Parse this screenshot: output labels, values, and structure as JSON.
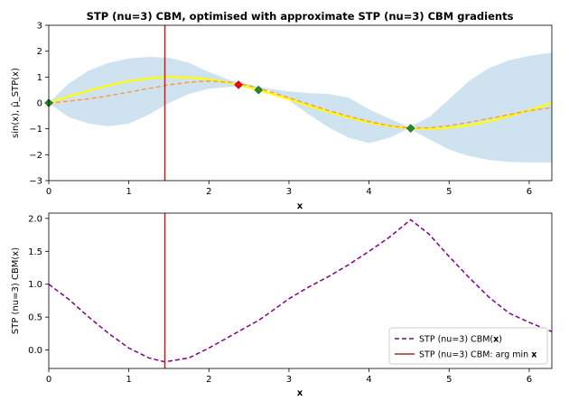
{
  "chart_data": [
    {
      "type": "line",
      "title": "STP (nu=3) CBM, optimised with approximate STP (nu=3) CBM gradients",
      "xlabel": "x",
      "ylabel": "sin(x), μ̂_STP(x)",
      "xlim": [
        0,
        6.283
      ],
      "ylim": [
        -3,
        3
      ],
      "xticks": [
        "0",
        "1",
        "2",
        "3",
        "4",
        "5",
        "6"
      ],
      "yticks": [
        "−3",
        "−2",
        "−1",
        "0",
        "1",
        "2",
        "3"
      ],
      "grid": false,
      "colors": {
        "true_fn": "#ffff00",
        "mean": "#ff9933",
        "band": "#cfe2f0",
        "vline": "#a52a2a",
        "obs": "#228b22",
        "best": "#ff0000"
      },
      "x": [
        0,
        0.25,
        0.5,
        0.75,
        1.0,
        1.25,
        1.5,
        1.75,
        2.0,
        2.25,
        2.5,
        2.75,
        3.0,
        3.25,
        3.5,
        3.75,
        4.0,
        4.25,
        4.5,
        4.75,
        5.0,
        5.25,
        5.5,
        5.75,
        6.0,
        6.283
      ],
      "series": [
        {
          "name": "true_fn",
          "values": [
            0,
            0.25,
            0.48,
            0.68,
            0.84,
            0.95,
            1.0,
            0.98,
            0.91,
            0.78,
            0.6,
            0.38,
            0.14,
            -0.11,
            -0.35,
            -0.57,
            -0.76,
            -0.89,
            -0.98,
            -1.0,
            -0.96,
            -0.86,
            -0.71,
            -0.51,
            -0.28,
            0
          ]
        },
        {
          "name": "mean",
          "values": [
            0,
            0.07,
            0.16,
            0.28,
            0.42,
            0.56,
            0.7,
            0.8,
            0.85,
            0.8,
            0.67,
            0.45,
            0.2,
            -0.05,
            -0.3,
            -0.52,
            -0.72,
            -0.88,
            -0.97,
            -0.96,
            -0.88,
            -0.75,
            -0.6,
            -0.45,
            -0.3,
            -0.18
          ]
        },
        {
          "name": "upper",
          "values": [
            0,
            0.75,
            1.25,
            1.55,
            1.72,
            1.78,
            1.75,
            1.55,
            1.2,
            0.9,
            0.7,
            0.55,
            0.45,
            0.38,
            0.35,
            0.2,
            -0.25,
            -0.6,
            -0.93,
            -0.55,
            0.15,
            0.85,
            1.35,
            1.65,
            1.82,
            1.95
          ]
        },
        {
          "name": "lower",
          "values": [
            0,
            -0.55,
            -0.8,
            -0.9,
            -0.8,
            -0.45,
            0.0,
            0.35,
            0.55,
            0.62,
            0.6,
            0.5,
            0.1,
            -0.45,
            -0.95,
            -1.35,
            -1.55,
            -1.35,
            -0.98,
            -1.4,
            -1.8,
            -2.05,
            -2.2,
            -2.28,
            -2.3,
            -2.3
          ]
        }
      ],
      "observations": [
        {
          "x": 0.0,
          "y": 0.0
        },
        {
          "x": 2.62,
          "y": 0.5
        },
        {
          "x": 4.52,
          "y": -0.98
        }
      ],
      "best_point": {
        "x": 2.37,
        "y": 0.7
      },
      "argmin_x": 1.45
    },
    {
      "type": "line",
      "xlabel": "x",
      "ylabel": "STP (nu=3) CBM(x)",
      "xlim": [
        0,
        6.283
      ],
      "ylim": [
        -0.28,
        2.08
      ],
      "xticks": [
        "0",
        "1",
        "2",
        "3",
        "4",
        "5",
        "6"
      ],
      "yticks": [
        "0.0",
        "0.5",
        "1.0",
        "1.5",
        "2.0"
      ],
      "grid": false,
      "legend_position": "lower-right",
      "colors": {
        "cbm": "#800080",
        "vline": "#a52a2a"
      },
      "x": [
        0,
        0.25,
        0.5,
        0.75,
        1.0,
        1.25,
        1.45,
        1.75,
        2.0,
        2.25,
        2.5,
        2.62,
        2.75,
        3.0,
        3.25,
        3.5,
        3.75,
        4.0,
        4.25,
        4.52,
        4.75,
        5.0,
        5.25,
        5.5,
        5.75,
        6.0,
        6.283
      ],
      "series": [
        {
          "name": "STP (nu=3) CBM(x)",
          "values": [
            1.0,
            0.77,
            0.5,
            0.25,
            0.03,
            -0.12,
            -0.18,
            -0.12,
            0.03,
            0.2,
            0.37,
            0.45,
            0.56,
            0.78,
            0.96,
            1.12,
            1.3,
            1.5,
            1.71,
            1.98,
            1.76,
            1.42,
            1.1,
            0.8,
            0.56,
            0.42,
            0.28
          ]
        }
      ],
      "argmin_x": 1.45,
      "legend": [
        {
          "label": "STP (nu=3) CBM(",
          "bold": "x",
          "after": ")",
          "style": "dashed",
          "color": "#800080"
        },
        {
          "label": "STP (nu=3) CBM: arg min ",
          "bold": "x",
          "after": "",
          "style": "solid",
          "color": "#a52a2a"
        }
      ]
    }
  ]
}
